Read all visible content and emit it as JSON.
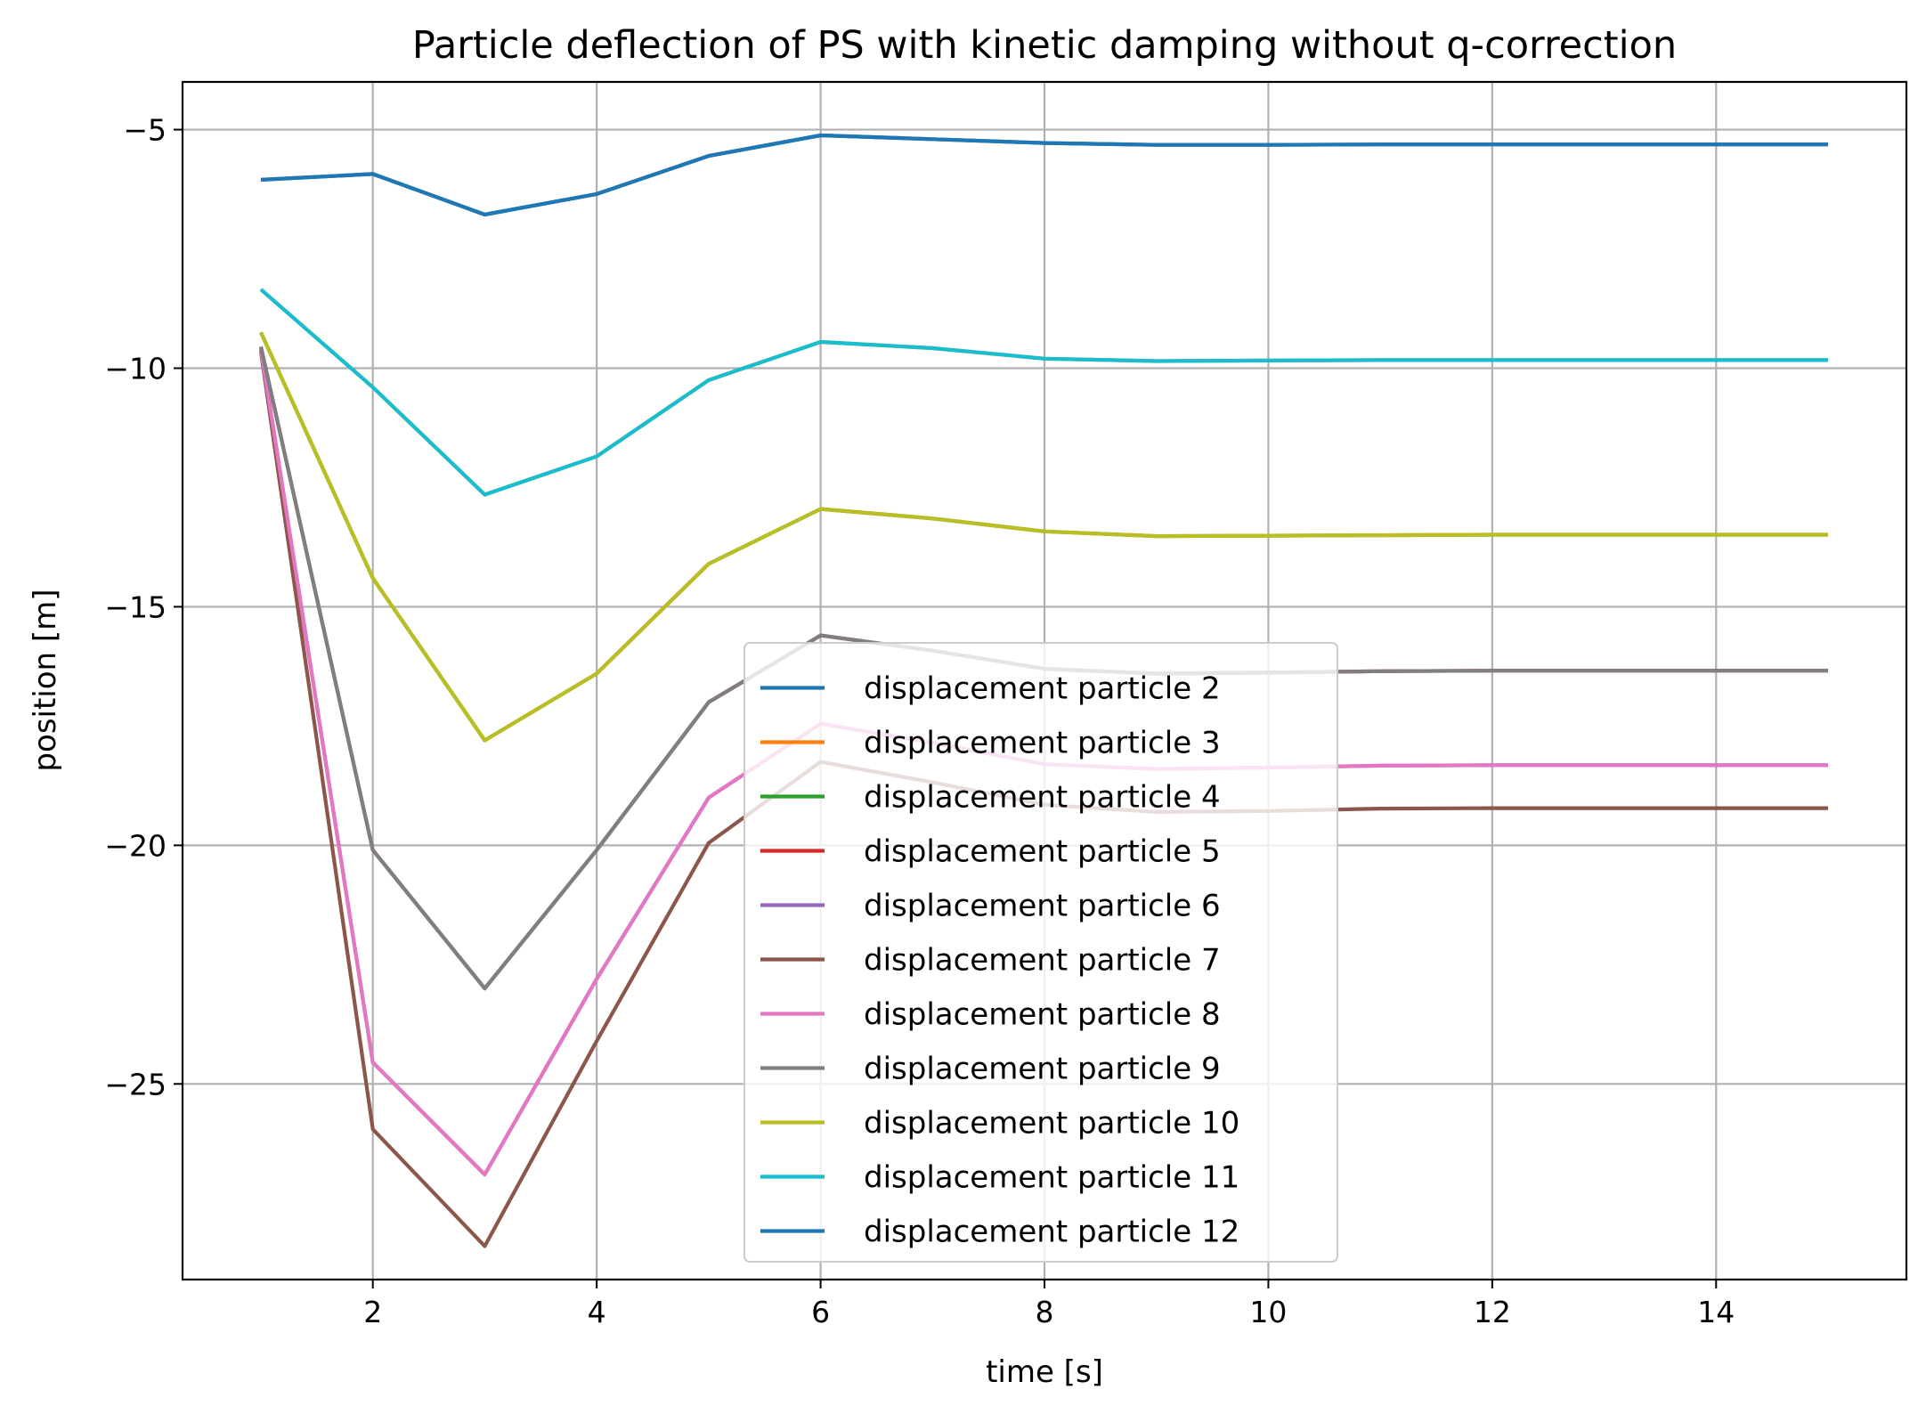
{
  "chart_data": {
    "type": "line",
    "title": "Particle deflection of PS with kinetic damping without q-correction",
    "xlabel": "time [s]",
    "ylabel": "position [m]",
    "xlim": [
      0.3,
      15.7
    ],
    "ylim": [
      -29.1,
      -4.0
    ],
    "xticks": [
      2,
      4,
      6,
      8,
      10,
      12,
      14
    ],
    "xtick_labels": [
      "2",
      "4",
      "6",
      "8",
      "10",
      "12",
      "14"
    ],
    "yticks": [
      -5,
      -10,
      -15,
      -20,
      -25
    ],
    "ytick_labels": [
      "−5",
      "−10",
      "−15",
      "−20",
      "−25"
    ],
    "grid": true,
    "legend_position": "lower center",
    "x": [
      1,
      2,
      3,
      4,
      5,
      6,
      7,
      8,
      9,
      10,
      11,
      12,
      13,
      14,
      15
    ],
    "series": [
      {
        "name": "displacement particle 2",
        "color": "#1f77b4",
        "values": [
          -6.05,
          -5.93,
          -6.78,
          -6.35,
          -5.55,
          -5.12,
          -5.2,
          -5.28,
          -5.32,
          -5.32,
          -5.31,
          -5.31,
          -5.31,
          -5.31,
          -5.31
        ]
      },
      {
        "name": "displacement particle 3",
        "color": "#ff7f0e",
        "values": [
          -8.35,
          -10.4,
          -12.65,
          -11.85,
          -10.25,
          -9.45,
          -9.58,
          -9.8,
          -9.85,
          -9.84,
          -9.83,
          -9.83,
          -9.83,
          -9.83,
          -9.83
        ]
      },
      {
        "name": "displacement particle 4",
        "color": "#2ca02c",
        "values": [
          -9.25,
          -14.4,
          -17.8,
          -16.4,
          -14.1,
          -12.95,
          -13.15,
          -13.42,
          -13.52,
          -13.51,
          -13.5,
          -13.49,
          -13.49,
          -13.49,
          -13.49
        ]
      },
      {
        "name": "displacement particle 5",
        "color": "#d62728",
        "values": [
          -9.55,
          -20.1,
          -23.0,
          -20.1,
          -17.0,
          -15.6,
          -15.92,
          -16.3,
          -16.4,
          -16.38,
          -16.35,
          -16.34,
          -16.34,
          -16.34,
          -16.34
        ]
      },
      {
        "name": "displacement particle 6",
        "color": "#9467bd",
        "values": [
          -9.6,
          -24.55,
          -26.9,
          -22.8,
          -19.0,
          -17.45,
          -17.85,
          -18.3,
          -18.4,
          -18.37,
          -18.33,
          -18.32,
          -18.32,
          -18.32,
          -18.32
        ]
      },
      {
        "name": "displacement particle 7",
        "color": "#8c564b",
        "values": [
          -9.65,
          -25.95,
          -28.4,
          -24.1,
          -19.95,
          -18.25,
          -18.68,
          -19.15,
          -19.3,
          -19.28,
          -19.23,
          -19.22,
          -19.22,
          -19.22,
          -19.22
        ]
      },
      {
        "name": "displacement particle 8",
        "color": "#e377c2",
        "values": [
          -9.6,
          -24.55,
          -26.9,
          -22.8,
          -19.0,
          -17.45,
          -17.85,
          -18.3,
          -18.4,
          -18.37,
          -18.33,
          -18.32,
          -18.32,
          -18.32,
          -18.32
        ]
      },
      {
        "name": "displacement particle 9",
        "color": "#7f7f7f",
        "values": [
          -9.55,
          -20.1,
          -23.0,
          -20.1,
          -17.0,
          -15.6,
          -15.92,
          -16.3,
          -16.4,
          -16.38,
          -16.35,
          -16.34,
          -16.34,
          -16.34,
          -16.34
        ]
      },
      {
        "name": "displacement particle 10",
        "color": "#bcbd22",
        "values": [
          -9.25,
          -14.4,
          -17.8,
          -16.4,
          -14.1,
          -12.95,
          -13.15,
          -13.42,
          -13.52,
          -13.51,
          -13.5,
          -13.49,
          -13.49,
          -13.49,
          -13.49
        ]
      },
      {
        "name": "displacement particle 11",
        "color": "#17becf",
        "values": [
          -8.35,
          -10.4,
          -12.65,
          -11.85,
          -10.25,
          -9.45,
          -9.58,
          -9.8,
          -9.85,
          -9.84,
          -9.83,
          -9.83,
          -9.83,
          -9.83,
          -9.83
        ]
      },
      {
        "name": "displacement particle 12",
        "color": "#1f77b4",
        "values": [
          -6.05,
          -5.93,
          -6.78,
          -6.35,
          -5.55,
          -5.12,
          -5.2,
          -5.28,
          -5.32,
          -5.32,
          -5.31,
          -5.31,
          -5.31,
          -5.31,
          -5.31
        ]
      }
    ]
  }
}
